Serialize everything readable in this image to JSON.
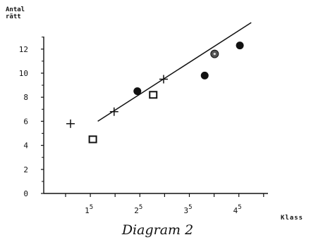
{
  "chart_data": {
    "type": "scatter",
    "title": "Diagram 2",
    "xlabel": "Klass",
    "ylabel_lines": [
      "Antal",
      "rätt"
    ],
    "ylim": [
      0,
      13
    ],
    "yticks": [
      "0",
      "2",
      "4",
      "6",
      "8",
      "10",
      "12"
    ],
    "xlim": [
      1,
      5
    ],
    "xticks": [
      {
        "value": 1.5,
        "base": "1",
        "sup": "5"
      },
      {
        "value": 2.5,
        "base": "2",
        "sup": "5"
      },
      {
        "value": 3.5,
        "base": "3",
        "sup": "5"
      },
      {
        "value": 4.5,
        "base": "4",
        "sup": "5"
      }
    ],
    "grid": false,
    "series": [
      {
        "marker": "plus",
        "points": [
          [
            1.1,
            5.8
          ],
          [
            1.98,
            6.8
          ],
          [
            2.98,
            9.5
          ]
        ]
      },
      {
        "marker": "square",
        "points": [
          [
            1.55,
            4.5
          ],
          [
            2.77,
            8.2
          ]
        ]
      },
      {
        "marker": "filled-circle",
        "points": [
          [
            2.45,
            8.5
          ],
          [
            3.81,
            9.8
          ],
          [
            4.52,
            12.3
          ]
        ]
      },
      {
        "marker": "dotted-circle",
        "points": [
          [
            4.01,
            11.6
          ]
        ]
      }
    ],
    "regression_line": [
      [
        1.65,
        6.0
      ],
      [
        4.75,
        14.2
      ]
    ]
  }
}
